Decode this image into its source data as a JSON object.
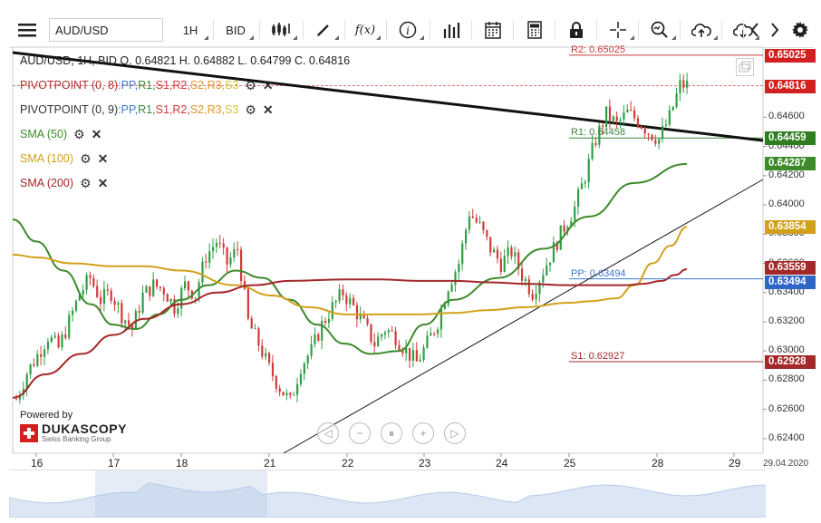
{
  "toolbar": {
    "menu_icon": "hamburger-icon",
    "symbol": "AUD/USD",
    "timeframe": "1H",
    "side": "BID",
    "function_label": "f(x)",
    "buttons": [
      "candles-icon",
      "draw-icon",
      "function-icon",
      "info-icon",
      "bar-chart-icon",
      "calendar-icon",
      "calculator-icon",
      "lock-icon",
      "crosshair-icon",
      "zoom-icon",
      "upload-icon",
      "download-icon",
      "prev-icon",
      "next-icon",
      "settings-icon"
    ]
  },
  "ohlc_text": "AUD/USD, 1H, BID     O. 0.64821 H. 0.64882 L. 0.64799 C. 0.64816",
  "indicators": [
    {
      "name": "PIVOTPOINT (0, 8)",
      "color": "#b03030",
      "levels": [
        {
          "t": "PP,",
          "c": "#3a78d8"
        },
        {
          "t": "R1,",
          "c": "#3b8a3b"
        },
        {
          "t": "S1,",
          "c": "#d23a3a"
        },
        {
          "t": "R2,",
          "c": "#d23a3a"
        },
        {
          "t": "S2,",
          "c": "#e0962a"
        },
        {
          "t": "R3,",
          "c": "#e0962a"
        },
        {
          "t": "S3",
          "c": "#d9c22c"
        }
      ]
    },
    {
      "name": "PIVOTPOINT (0, 9)",
      "color": "#333333",
      "levels": [
        {
          "t": "PP,",
          "c": "#3a78d8"
        },
        {
          "t": "R1,",
          "c": "#3b8a3b"
        },
        {
          "t": "S1,",
          "c": "#d23a3a"
        },
        {
          "t": "R2,",
          "c": "#d23a3a"
        },
        {
          "t": "S2,",
          "c": "#e0962a"
        },
        {
          "t": "R3,",
          "c": "#e0962a"
        },
        {
          "t": "S3",
          "c": "#d9c22c"
        }
      ]
    },
    {
      "name": "SMA (50)",
      "color": "#3d8a2a",
      "levels": []
    },
    {
      "name": "SMA (100)",
      "color": "#d2a11a",
      "levels": []
    },
    {
      "name": "SMA (200)",
      "color": "#a3282a",
      "levels": []
    }
  ],
  "chart_data": {
    "type": "candlestick",
    "symbol": "AUD/USD",
    "timeframe": "1H",
    "x_ticks": [
      "16",
      "17",
      "18",
      "21",
      "22",
      "23",
      "24",
      "25",
      "28",
      "29"
    ],
    "y_ticks": [
      "0.64600",
      "0.64400",
      "0.64200",
      "0.64000",
      "0.63800",
      "0.63600",
      "0.63400",
      "0.63200",
      "0.63000",
      "0.62800",
      "0.62600",
      "0.62400"
    ],
    "ylim": [
      0.623,
      0.6508
    ],
    "last_date": "29.04.2020",
    "close_path": [
      0.6267,
      0.6285,
      0.6297,
      0.631,
      0.6302,
      0.632,
      0.6339,
      0.635,
      0.6335,
      0.634,
      0.6325,
      0.6315,
      0.6338,
      0.6345,
      0.6342,
      0.633,
      0.6345,
      0.6339,
      0.6365,
      0.6375,
      0.636,
      0.637,
      0.632,
      0.6305,
      0.6288,
      0.6275,
      0.6265,
      0.629,
      0.63,
      0.6318,
      0.633,
      0.634,
      0.633,
      0.6318,
      0.6305,
      0.6315,
      0.631,
      0.63,
      0.6292,
      0.6305,
      0.632,
      0.6345,
      0.636,
      0.6395,
      0.6385,
      0.637,
      0.636,
      0.6368,
      0.6352,
      0.634,
      0.6355,
      0.637,
      0.6385,
      0.6398,
      0.642,
      0.6445,
      0.6462,
      0.6455,
      0.6463,
      0.6458,
      0.645,
      0.6445,
      0.646,
      0.6482
    ],
    "levels": [
      {
        "name": "R2",
        "label": "R2: 0.65025",
        "value": 0.65025,
        "color": "#d23a3a"
      },
      {
        "name": "R1",
        "label": "R1: 0.64458",
        "value": 0.64458,
        "color": "#3b8a3b"
      },
      {
        "name": "PP",
        "label": "PP: 0.63494",
        "value": 0.63494,
        "color": "#3a78d8"
      },
      {
        "name": "S1",
        "label": "S1: 0.62927",
        "value": 0.62927,
        "color": "#a3282a"
      }
    ],
    "price_labels": [
      {
        "value": "0.65025",
        "color": "#d21f1f"
      },
      {
        "value": "0.64816",
        "color": "#d21f1f"
      },
      {
        "value": "0.64459",
        "color": "#2e7d1f"
      },
      {
        "value": "0.64287",
        "color": "#3d8a2a"
      },
      {
        "value": "0.63854",
        "color": "#d2a11a"
      },
      {
        "value": "0.63559",
        "color": "#a3282a"
      },
      {
        "value": "0.63494",
        "color": "#2e66c8"
      },
      {
        "value": "0.62928",
        "color": "#a3282a"
      }
    ],
    "series": [
      {
        "name": "SMA (50)",
        "color": "#3d8a2a",
        "values": [
          0.639,
          0.6375,
          0.6355,
          0.6332,
          0.6318,
          0.6315,
          0.6325,
          0.6335,
          0.6345,
          0.6355,
          0.635,
          0.6335,
          0.6318,
          0.6305,
          0.6298,
          0.63,
          0.6318,
          0.6335,
          0.635,
          0.637,
          0.6392,
          0.6415,
          0.6428
        ]
      },
      {
        "name": "SMA (100)",
        "color": "#d2a11a",
        "values": [
          0.6366,
          0.6364,
          0.636,
          0.6358,
          0.6358,
          0.6355,
          0.6345,
          0.6338,
          0.633,
          0.6325,
          0.6325,
          0.6325,
          0.6326,
          0.6328,
          0.633,
          0.6333,
          0.6334,
          0.6336,
          0.6345,
          0.636,
          0.6372,
          0.6385
        ]
      },
      {
        "name": "SMA (200)",
        "color": "#a3282a",
        "values": [
          0.6268,
          0.6284,
          0.6298,
          0.6311,
          0.6322,
          0.6332,
          0.634,
          0.6345,
          0.6348,
          0.6349,
          0.6349,
          0.6348,
          0.6348,
          0.6347,
          0.6346,
          0.6345,
          0.6345,
          0.6345,
          0.6346,
          0.6348,
          0.6352,
          0.6356
        ]
      }
    ]
  },
  "nav": [
    "scroll-left-icon",
    "zoom-out-icon",
    "reset-icon",
    "zoom-in-icon",
    "scroll-right-icon"
  ],
  "logo": {
    "powered": "Powered by",
    "brand": "DUKASCOPY",
    "tagline": "Swiss Banking Group"
  },
  "colors": {
    "up": "#2f9e44",
    "down": "#d23a3a"
  }
}
